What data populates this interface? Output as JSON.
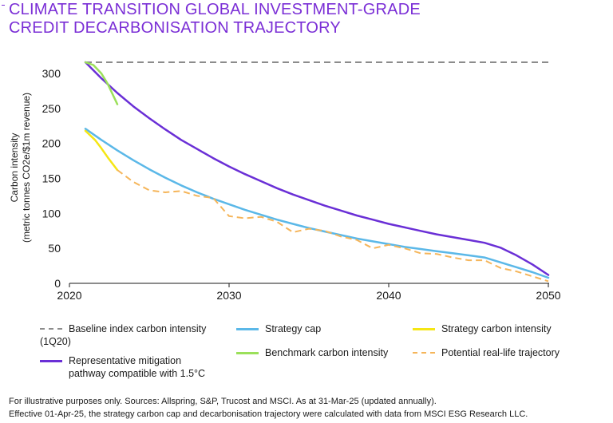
{
  "title_line1": "CLIMATE TRANSITION GLOBAL INVESTMENT-GRADE",
  "title_line2": "CREDIT DECARBONISATION TRAJECTORY",
  "footnotes": [
    "For illustrative purposes only. Sources: Allspring, S&P, Trucost and MSCI. As at 31-Mar-25 (updated annually).",
    "Effective 01-Apr-25, the strategy carbon cap and decarbonisation trajectory were calculated with data from MSCI ESG Research LLC."
  ],
  "legend": [
    {
      "label_line1": "Baseline index carbon intensity",
      "label_line2": "(1Q20)",
      "color": "#8c8c8c",
      "style": "dashed"
    },
    {
      "label_line1": "Strategy cap",
      "label_line2": "",
      "color": "#5bb8e8",
      "style": "solid"
    },
    {
      "label_line1": "Strategy carbon intensity",
      "label_line2": "",
      "color": "#f5e614",
      "style": "solid"
    },
    {
      "label_line1": "Benchmark carbon intensity",
      "label_line2": "",
      "color": "#9be05a",
      "style": "solid"
    },
    {
      "label_line1": "Potential real-life trajectory",
      "label_line2": "",
      "color": "#f5b55a",
      "style": "dashed"
    },
    {
      "label_line1": "Representative mitigation",
      "label_line2": "pathway compatible with 1.5°C",
      "color": "#6a2fd6",
      "style": "solid"
    }
  ],
  "chart_data": {
    "type": "line",
    "title": "CLIMATE TRANSITION GLOBAL INVESTMENT-GRADE CREDIT DECARBONISATION TRAJECTORY",
    "ylabel_line1": "Carbon intensity",
    "ylabel_line2": "(metric tonnes CO2e/$1m revenue)",
    "xlabel": "",
    "xlim": [
      2020,
      2050
    ],
    "ylim": [
      0,
      300
    ],
    "xticks": [
      2020,
      2030,
      2040,
      2050
    ],
    "yticks": [
      0,
      50,
      100,
      150,
      200,
      250,
      300
    ],
    "grid": false,
    "legend_position": "bottom",
    "series": [
      {
        "name": "Baseline index carbon intensity (1Q20)",
        "color": "#8c8c8c",
        "dashed": true,
        "width": 2,
        "x": [
          2021,
          2050
        ],
        "y": [
          316,
          316
        ]
      },
      {
        "name": "Representative mitigation pathway compatible with 1.5°C",
        "color": "#6a2fd6",
        "dashed": false,
        "width": 2.5,
        "x": [
          2021,
          2022,
          2023,
          2024,
          2025,
          2026,
          2027,
          2028,
          2029,
          2030,
          2031,
          2032,
          2033,
          2034,
          2035,
          2036,
          2037,
          2038,
          2039,
          2040,
          2041,
          2042,
          2043,
          2044,
          2045,
          2046,
          2047,
          2048,
          2049,
          2050
        ],
        "y": [
          316,
          293,
          272,
          253,
          236,
          220,
          205,
          192,
          179,
          167,
          156,
          146,
          136,
          127,
          119,
          111,
          104,
          97,
          91,
          85,
          80,
          75,
          70,
          66,
          62,
          58,
          51,
          40,
          27,
          12
        ]
      },
      {
        "name": "Strategy cap",
        "color": "#5bb8e8",
        "dashed": false,
        "width": 2.5,
        "x": [
          2021,
          2022,
          2023,
          2024,
          2025,
          2026,
          2027,
          2028,
          2029,
          2030,
          2031,
          2032,
          2033,
          2034,
          2035,
          2036,
          2037,
          2038,
          2039,
          2040,
          2041,
          2042,
          2043,
          2044,
          2045,
          2046,
          2047,
          2048,
          2049,
          2050
        ],
        "y": [
          221,
          205,
          190,
          176,
          163,
          151,
          140,
          130,
          121,
          113,
          105,
          98,
          91,
          85,
          79,
          74,
          69,
          64,
          60,
          56,
          52,
          49,
          46,
          43,
          40,
          37,
          30,
          23,
          16,
          8
        ]
      },
      {
        "name": "Benchmark carbon intensity",
        "color": "#9be05a",
        "dashed": false,
        "width": 2.5,
        "x": [
          2021,
          2021.5,
          2022,
          2022.4,
          2023
        ],
        "y": [
          316,
          312,
          300,
          285,
          256
        ]
      },
      {
        "name": "Strategy carbon intensity",
        "color": "#f5e614",
        "dashed": false,
        "width": 2.5,
        "x": [
          2021,
          2021.6,
          2022,
          2022.4,
          2023
        ],
        "y": [
          218,
          205,
          193,
          180,
          162
        ]
      },
      {
        "name": "Potential real-life trajectory",
        "color": "#f5b55a",
        "dashed": true,
        "width": 2,
        "x": [
          2023,
          2024,
          2025,
          2026,
          2027,
          2028,
          2029,
          2030,
          2031,
          2032,
          2033,
          2034,
          2035,
          2036,
          2037,
          2038,
          2039,
          2040,
          2041,
          2042,
          2043,
          2044,
          2045,
          2046,
          2047,
          2048,
          2049,
          2050
        ],
        "y": [
          162,
          145,
          133,
          130,
          132,
          125,
          122,
          96,
          93,
          95,
          88,
          73,
          78,
          75,
          67,
          62,
          50,
          55,
          50,
          43,
          42,
          37,
          33,
          33,
          22,
          17,
          10,
          3
        ]
      }
    ]
  }
}
